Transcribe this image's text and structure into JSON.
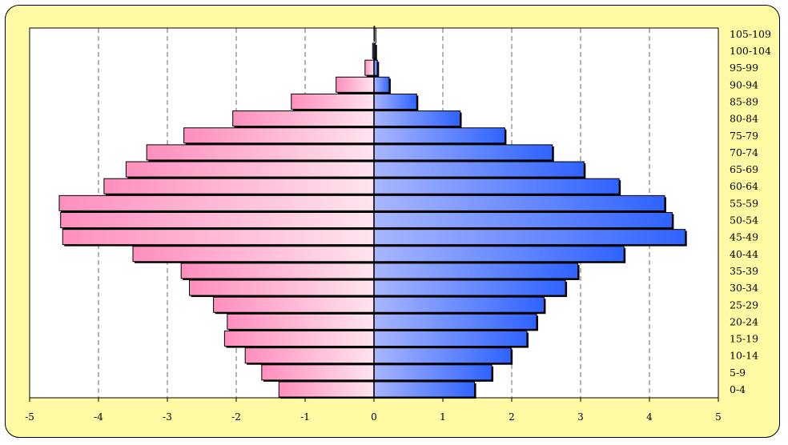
{
  "colors": {
    "frame_background": "#fffaa3",
    "plot_background": "#ffffff",
    "female_dark": "#ff8fbe",
    "female_light": "#ffe4ef",
    "male_light": "#a8b6ff",
    "male_dark": "#2f63ff",
    "grid": "#444444"
  },
  "chart_data": {
    "type": "bar",
    "orientation": "horizontal",
    "layout": "population-pyramid",
    "categories": [
      "0-4",
      "5-9",
      "10-14",
      "15-19",
      "20-24",
      "25-29",
      "30-34",
      "35-39",
      "40-44",
      "45-49",
      "50-54",
      "55-59",
      "60-64",
      "65-69",
      "70-74",
      "75-79",
      "80-84",
      "85-89",
      "90-94",
      "95-99",
      "100-104",
      "105-109"
    ],
    "series": [
      {
        "values": [
          -1.38,
          -1.63,
          -1.87,
          -2.17,
          -2.13,
          -2.33,
          -2.68,
          -2.8,
          -3.5,
          -4.52,
          -4.55,
          -4.57,
          -3.92,
          -3.6,
          -3.3,
          -2.76,
          -2.05,
          -1.2,
          -0.55,
          -0.13,
          -0.02,
          0
        ]
      },
      {
        "values": [
          1.46,
          1.71,
          1.99,
          2.22,
          2.36,
          2.47,
          2.78,
          2.96,
          3.63,
          4.52,
          4.33,
          4.22,
          3.56,
          3.05,
          2.59,
          1.9,
          1.25,
          0.62,
          0.22,
          0.05,
          0.02,
          0.01
        ]
      }
    ],
    "xlim": [
      -5,
      5
    ],
    "xticks": [
      -5,
      -4,
      -3,
      -2,
      -1,
      0,
      1,
      2,
      3,
      4,
      5
    ],
    "xtick_labels": [
      "-5",
      "-4",
      "-3",
      "-2",
      "-1",
      "0",
      "1",
      "2",
      "3",
      "4",
      "5"
    ],
    "grid": "vertical dashed",
    "category_axis": "right",
    "legend": "none",
    "title": "",
    "xlabel": "",
    "ylabel": ""
  }
}
